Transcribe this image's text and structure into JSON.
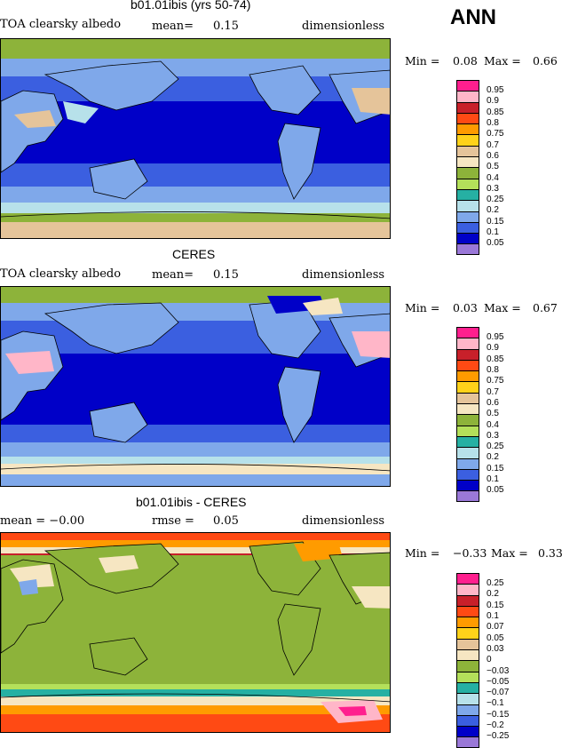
{
  "tag": "ANN",
  "panels": [
    {
      "title": "b01.01ibis (yrs 50-74)",
      "left_text": "TOA clearsky albedo",
      "mid_label": "mean=",
      "mid_value": "0.15",
      "right_text": "dimensionless",
      "min_label": "Min =",
      "min_value": "0.08",
      "max_label": "Max =",
      "max_value": "0.66",
      "background_color": "#1b3fd6"
    },
    {
      "title": "CERES",
      "left_text": "TOA clearsky albedo",
      "mid_label": "mean=",
      "mid_value": "0.15",
      "right_text": "dimensionless",
      "min_label": "Min =",
      "min_value": "0.03",
      "max_label": "Max =",
      "max_value": "0.67",
      "background_color": "#1b3fd6"
    },
    {
      "title": "b01.01ibis - CERES",
      "left_text": "mean =   −0.00",
      "mid_label": "rmse =",
      "mid_value": "0.05",
      "right_text": "dimensionless",
      "min_label": "Min =",
      "min_value": "−0.33",
      "max_label": "Max =",
      "max_value": "0.33",
      "background_color": "#8db33a"
    }
  ],
  "legend_abs": {
    "labels": [
      "0.95",
      "0.9",
      "0.85",
      "0.8",
      "0.75",
      "0.7",
      "0.6",
      "0.5",
      "0.4",
      "0.3",
      "0.25",
      "0.2",
      "0.15",
      "0.1",
      "0.05"
    ],
    "colors": [
      "#ff1f8e",
      "#ffb6c8",
      "#c8202a",
      "#ff4a14",
      "#ff9b00",
      "#ffd21a",
      "#e5c49a",
      "#f6e6c2",
      "#8db33a",
      "#b4e05a",
      "#26b0a3",
      "#b7e1ea",
      "#7fa8ea",
      "#3b5fe0",
      "#0000c8",
      "#9a78d8"
    ]
  },
  "legend_diff": {
    "labels": [
      "0.25",
      "0.2",
      "0.15",
      "0.1",
      "0.07",
      "0.05",
      "0.03",
      "0",
      "−0.03",
      "−0.05",
      "−0.07",
      "−0.1",
      "−0.15",
      "−0.2",
      "−0.25"
    ],
    "colors": [
      "#ff1f8e",
      "#ffb6c8",
      "#c8202a",
      "#ff4a14",
      "#ff9b00",
      "#ffd21a",
      "#e5c49a",
      "#f6e6c2",
      "#8db33a",
      "#b4e05a",
      "#26b0a3",
      "#b7e1ea",
      "#7fa8ea",
      "#3b5fe0",
      "#0000c8",
      "#9a78d8"
    ]
  }
}
